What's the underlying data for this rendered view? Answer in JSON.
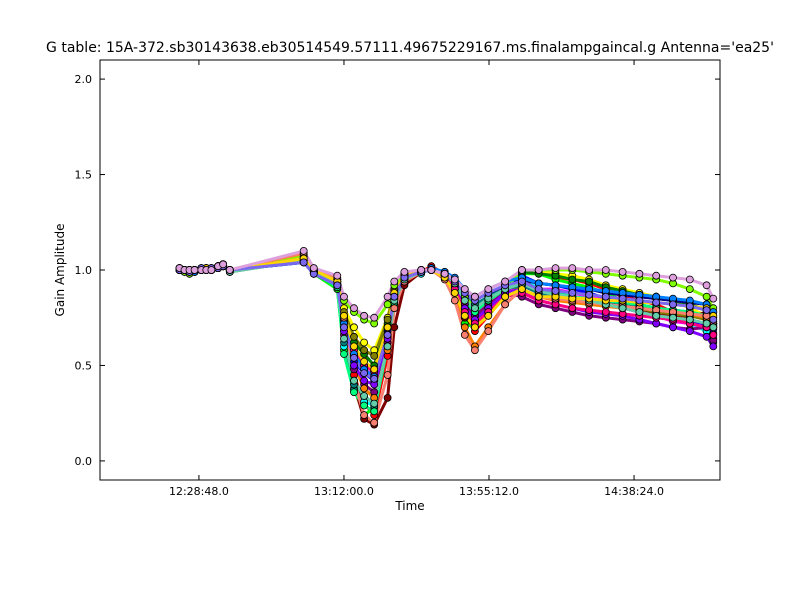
{
  "chart_data": {
    "type": "line",
    "title": "G table: 15A-372.sb30143638.eb30514549.57111.49675229167.ms.finalampgaincal.g      Antenna='ea25'",
    "xlabel": "Time",
    "ylabel": "Gain Amplitude",
    "x_ticks": [
      "12:28:48.0",
      "13:12:00.0",
      "13:55:12.0",
      "14:38:24.0"
    ],
    "y_ticks": [
      "0.0",
      "0.5",
      "1.0",
      "1.5",
      "2.0"
    ],
    "ylim": [
      -0.1,
      2.1
    ],
    "xlim_seconds_from_12_00": [
      -40,
      11040
    ],
    "grid": false,
    "legend": "none",
    "time_points": [
      "12:23:00",
      "12:24:30",
      "12:26:00",
      "12:27:30",
      "12:29:30",
      "12:31:00",
      "12:32:30",
      "12:34:30",
      "12:36:00",
      "12:38:00",
      "13:00:00",
      "13:03:00",
      "13:10:00",
      "13:12:00",
      "13:15:00",
      "13:18:00",
      "13:21:00",
      "13:25:00",
      "13:27:00",
      "13:30:00",
      "13:35:00",
      "13:38:00",
      "13:42:00",
      "13:45:00",
      "13:48:00",
      "13:51:00",
      "13:55:00",
      "14:00:00",
      "14:05:00",
      "14:10:00",
      "14:15:00",
      "14:20:00",
      "14:25:00",
      "14:30:00",
      "14:35:00",
      "14:40:00",
      "14:45:00",
      "14:50:00",
      "14:55:00",
      "15:00:00",
      "15:02:00"
    ],
    "series": [
      {
        "color": "#ff0000",
        "values": [
          1.01,
          1.0,
          0.99,
          1.0,
          1.0,
          1.01,
          1.0,
          1.02,
          1.03,
          1.0,
          1.08,
          1.0,
          0.95,
          0.73,
          0.45,
          0.3,
          0.24,
          0.55,
          0.85,
          0.95,
          0.99,
          1.02,
          0.98,
          0.9,
          0.75,
          0.68,
          0.76,
          0.88,
          0.99,
          1.0,
          0.96,
          0.95,
          0.93,
          0.9,
          0.86,
          0.84,
          0.82,
          0.78,
          0.74,
          0.7,
          0.67
        ]
      },
      {
        "color": "#00ff00",
        "values": [
          1.0,
          0.99,
          0.98,
          0.99,
          1.0,
          1.0,
          1.0,
          1.01,
          1.02,
          0.99,
          1.06,
          0.98,
          0.9,
          0.58,
          0.38,
          0.24,
          0.28,
          0.7,
          0.9,
          0.98,
          1.0,
          1.0,
          0.96,
          0.88,
          0.72,
          0.7,
          0.78,
          0.86,
          0.98,
          0.98,
          0.95,
          0.93,
          0.91,
          0.88,
          0.84,
          0.82,
          0.8,
          0.76,
          0.72,
          0.68,
          0.64
        ]
      },
      {
        "color": "#0000ff",
        "values": [
          1.0,
          1.0,
          0.99,
          1.0,
          1.01,
          1.0,
          1.0,
          1.02,
          1.02,
          1.0,
          1.05,
          0.99,
          0.93,
          0.68,
          0.52,
          0.46,
          0.42,
          0.65,
          0.87,
          0.96,
          0.99,
          1.01,
          0.97,
          0.92,
          0.8,
          0.73,
          0.8,
          0.9,
          0.97,
          0.93,
          0.92,
          0.9,
          0.88,
          0.85,
          0.83,
          0.8,
          0.78,
          0.76,
          0.74,
          0.71,
          0.69
        ]
      },
      {
        "color": "#00ffff",
        "values": [
          1.01,
          1.0,
          1.0,
          0.99,
          1.0,
          1.01,
          1.01,
          1.01,
          1.03,
          1.0,
          1.04,
          0.99,
          0.91,
          0.6,
          0.37,
          0.31,
          0.29,
          0.62,
          0.84,
          0.95,
          0.98,
          1.01,
          0.99,
          0.95,
          0.86,
          0.8,
          0.84,
          0.92,
          0.96,
          0.9,
          0.88,
          0.86,
          0.84,
          0.82,
          0.8,
          0.78,
          0.76,
          0.74,
          0.72,
          0.68,
          0.62
        ]
      },
      {
        "color": "#ff00ff",
        "values": [
          1.0,
          1.0,
          0.99,
          1.0,
          1.0,
          1.0,
          1.01,
          1.02,
          1.02,
          1.0,
          1.07,
          1.0,
          0.94,
          0.72,
          0.55,
          0.48,
          0.45,
          0.7,
          0.88,
          0.97,
          1.0,
          1.0,
          0.97,
          0.92,
          0.84,
          0.78,
          0.82,
          0.88,
          0.93,
          0.9,
          0.9,
          0.88,
          0.86,
          0.84,
          0.8,
          0.78,
          0.76,
          0.73,
          0.72,
          0.7,
          0.66
        ]
      },
      {
        "color": "#ffff00",
        "values": [
          1.0,
          0.99,
          0.99,
          1.0,
          1.0,
          1.01,
          1.0,
          1.01,
          1.02,
          1.0,
          1.06,
          1.0,
          0.95,
          0.8,
          0.7,
          0.62,
          0.58,
          0.75,
          0.9,
          0.98,
          1.0,
          1.0,
          0.96,
          0.9,
          0.82,
          0.76,
          0.8,
          0.88,
          1.0,
          0.99,
          0.98,
          0.97,
          0.95,
          0.92,
          0.9,
          0.88,
          0.86,
          0.84,
          0.8,
          0.76,
          0.72
        ]
      },
      {
        "color": "#800000",
        "values": [
          1.01,
          1.0,
          0.99,
          1.0,
          1.0,
          1.0,
          1.0,
          1.02,
          1.03,
          1.0,
          1.05,
          0.99,
          0.92,
          0.7,
          0.4,
          0.22,
          0.19,
          0.33,
          0.7,
          0.92,
          0.99,
          1.0,
          0.98,
          0.9,
          0.75,
          0.7,
          0.78,
          0.9,
          0.96,
          0.88,
          0.86,
          0.85,
          0.83,
          0.82,
          0.8,
          0.79,
          0.77,
          0.76,
          0.75,
          0.78,
          0.72
        ]
      },
      {
        "color": "#008000",
        "values": [
          1.0,
          1.0,
          1.0,
          0.99,
          1.0,
          1.0,
          1.01,
          1.01,
          1.02,
          0.99,
          1.05,
          0.99,
          0.93,
          0.76,
          0.62,
          0.56,
          0.5,
          0.72,
          0.88,
          0.97,
          0.99,
          1.0,
          0.97,
          0.91,
          0.8,
          0.74,
          0.8,
          0.88,
          0.99,
          0.98,
          0.97,
          0.95,
          0.94,
          0.91,
          0.89,
          0.87,
          0.86,
          0.84,
          0.82,
          0.79,
          0.75
        ]
      },
      {
        "color": "#000080",
        "values": [
          1.0,
          1.0,
          0.99,
          1.0,
          1.01,
          1.0,
          1.0,
          1.02,
          1.02,
          1.0,
          1.04,
          0.98,
          0.92,
          0.7,
          0.56,
          0.5,
          0.47,
          0.68,
          0.86,
          0.96,
          0.99,
          1.0,
          0.98,
          0.93,
          0.85,
          0.8,
          0.86,
          0.92,
          0.95,
          0.93,
          0.92,
          0.91,
          0.9,
          0.88,
          0.87,
          0.86,
          0.85,
          0.84,
          0.83,
          0.82,
          0.78
        ]
      },
      {
        "color": "#808000",
        "values": [
          1.01,
          1.0,
          1.0,
          1.0,
          1.0,
          1.01,
          1.0,
          1.01,
          1.03,
          1.0,
          1.07,
          1.0,
          0.94,
          0.78,
          0.65,
          0.58,
          0.55,
          0.74,
          0.89,
          0.97,
          1.0,
          1.0,
          0.97,
          0.9,
          0.78,
          0.72,
          0.78,
          0.86,
          0.92,
          0.88,
          0.86,
          0.85,
          0.84,
          0.82,
          0.81,
          0.8,
          0.78,
          0.77,
          0.76,
          0.74,
          0.7
        ]
      },
      {
        "color": "#800080",
        "values": [
          1.0,
          1.0,
          0.99,
          1.0,
          1.0,
          1.0,
          1.01,
          1.02,
          1.02,
          1.0,
          1.06,
          0.99,
          0.92,
          0.66,
          0.48,
          0.4,
          0.36,
          0.62,
          0.85,
          0.95,
          0.99,
          1.01,
          0.98,
          0.92,
          0.82,
          0.76,
          0.82,
          0.88,
          0.86,
          0.82,
          0.8,
          0.78,
          0.76,
          0.75,
          0.74,
          0.73,
          0.72,
          0.7,
          0.69,
          0.7,
          0.63
        ]
      },
      {
        "color": "#008080",
        "values": [
          1.0,
          1.0,
          1.0,
          1.0,
          1.0,
          1.01,
          1.0,
          1.01,
          1.02,
          1.0,
          1.04,
          0.99,
          0.91,
          0.62,
          0.4,
          0.34,
          0.3,
          0.6,
          0.84,
          0.96,
          0.99,
          1.0,
          0.98,
          0.94,
          0.86,
          0.82,
          0.86,
          0.9,
          0.92,
          0.88,
          0.86,
          0.85,
          0.84,
          0.83,
          0.82,
          0.81,
          0.8,
          0.79,
          0.78,
          0.76,
          0.7
        ]
      },
      {
        "color": "#ff8000",
        "values": [
          1.01,
          1.0,
          0.99,
          1.0,
          1.0,
          1.0,
          1.0,
          1.02,
          1.03,
          1.0,
          1.08,
          1.0,
          0.95,
          0.74,
          0.5,
          0.38,
          0.33,
          0.58,
          0.82,
          0.94,
          0.99,
          1.0,
          0.96,
          0.88,
          0.7,
          0.6,
          0.7,
          0.82,
          0.9,
          0.86,
          0.84,
          0.83,
          0.82,
          0.81,
          0.8,
          0.8,
          0.79,
          0.78,
          0.77,
          0.75,
          0.71
        ]
      },
      {
        "color": "#80ff00",
        "values": [
          1.0,
          0.99,
          0.98,
          0.99,
          1.0,
          1.0,
          1.0,
          1.01,
          1.02,
          0.99,
          1.07,
          0.99,
          0.95,
          0.84,
          0.78,
          0.74,
          0.72,
          0.82,
          0.92,
          0.98,
          1.0,
          1.0,
          0.97,
          0.93,
          0.86,
          0.8,
          0.84,
          0.9,
          1.0,
          1.0,
          1.0,
          1.0,
          0.99,
          0.98,
          0.97,
          0.96,
          0.95,
          0.93,
          0.9,
          0.86,
          0.8
        ]
      },
      {
        "color": "#8000ff",
        "values": [
          1.0,
          1.0,
          0.99,
          1.0,
          1.01,
          1.0,
          1.0,
          1.02,
          1.02,
          1.0,
          1.05,
          0.99,
          0.92,
          0.68,
          0.5,
          0.42,
          0.4,
          0.64,
          0.86,
          0.96,
          0.99,
          1.0,
          0.97,
          0.91,
          0.8,
          0.74,
          0.8,
          0.88,
          0.9,
          0.84,
          0.82,
          0.8,
          0.78,
          0.77,
          0.76,
          0.74,
          0.72,
          0.7,
          0.68,
          0.65,
          0.6
        ]
      },
      {
        "color": "#ff0080",
        "values": [
          1.01,
          1.0,
          1.0,
          1.0,
          1.0,
          1.01,
          1.0,
          1.01,
          1.03,
          1.0,
          1.06,
          1.0,
          0.94,
          0.74,
          0.58,
          0.5,
          0.47,
          0.7,
          0.87,
          0.97,
          1.0,
          1.0,
          0.97,
          0.9,
          0.78,
          0.72,
          0.78,
          0.86,
          0.88,
          0.84,
          0.82,
          0.8,
          0.79,
          0.78,
          0.77,
          0.76,
          0.75,
          0.74,
          0.72,
          0.7,
          0.66
        ]
      },
      {
        "color": "#00ff80",
        "values": [
          1.0,
          1.0,
          0.99,
          1.0,
          1.0,
          1.0,
          1.01,
          1.02,
          1.02,
          1.0,
          1.05,
          0.99,
          0.91,
          0.56,
          0.36,
          0.29,
          0.26,
          0.6,
          0.83,
          0.95,
          0.99,
          1.0,
          0.98,
          0.93,
          0.84,
          0.78,
          0.84,
          0.9,
          0.94,
          0.9,
          0.88,
          0.86,
          0.85,
          0.84,
          0.83,
          0.82,
          0.8,
          0.79,
          0.78,
          0.76,
          0.72
        ]
      },
      {
        "color": "#0080ff",
        "values": [
          1.0,
          1.0,
          1.0,
          0.99,
          1.0,
          1.0,
          1.0,
          1.01,
          1.02,
          1.0,
          1.04,
          0.98,
          0.92,
          0.72,
          0.56,
          0.48,
          0.44,
          0.66,
          0.86,
          0.96,
          0.99,
          1.01,
          0.99,
          0.96,
          0.9,
          0.86,
          0.9,
          0.94,
          0.96,
          0.93,
          0.92,
          0.91,
          0.9,
          0.89,
          0.88,
          0.87,
          0.86,
          0.85,
          0.84,
          0.82,
          0.78
        ]
      },
      {
        "color": "#fa8072",
        "values": [
          1.01,
          1.0,
          0.99,
          1.0,
          1.0,
          1.01,
          1.0,
          1.02,
          1.03,
          1.0,
          1.09,
          1.01,
          0.96,
          0.75,
          0.42,
          0.24,
          0.2,
          0.45,
          0.8,
          0.94,
          0.99,
          1.0,
          0.95,
          0.84,
          0.66,
          0.58,
          0.68,
          0.82,
          0.9,
          0.86,
          0.85,
          0.84,
          0.83,
          0.82,
          0.81,
          0.8,
          0.79,
          0.78,
          0.77,
          0.76,
          0.73
        ]
      },
      {
        "color": "#66cdaa",
        "values": [
          1.0,
          1.0,
          0.99,
          1.0,
          1.0,
          1.0,
          1.0,
          1.01,
          1.02,
          0.99,
          1.05,
          0.99,
          0.92,
          0.64,
          0.42,
          0.34,
          0.3,
          0.6,
          0.84,
          0.95,
          0.99,
          1.0,
          0.98,
          0.93,
          0.84,
          0.8,
          0.85,
          0.9,
          0.93,
          0.89,
          0.87,
          0.86,
          0.84,
          0.82,
          0.8,
          0.78,
          0.76,
          0.75,
          0.74,
          0.72,
          0.7
        ]
      },
      {
        "color": "#ffd700",
        "values": [
          1.0,
          1.0,
          1.0,
          1.0,
          1.0,
          1.01,
          1.0,
          1.02,
          1.02,
          1.0,
          1.06,
          1.0,
          0.94,
          0.76,
          0.6,
          0.52,
          0.48,
          0.7,
          0.88,
          0.97,
          1.0,
          1.0,
          0.96,
          0.88,
          0.76,
          0.7,
          0.76,
          0.86,
          0.9,
          0.86,
          0.86,
          0.85,
          0.85,
          0.84,
          0.84,
          0.83,
          0.83,
          0.82,
          0.81,
          0.8,
          0.76
        ]
      },
      {
        "color": "#7b68ee",
        "values": [
          1.0,
          1.0,
          0.99,
          1.0,
          1.01,
          1.0,
          1.01,
          1.01,
          1.02,
          1.0,
          1.04,
          0.98,
          0.92,
          0.7,
          0.54,
          0.46,
          0.43,
          0.66,
          0.86,
          0.96,
          0.99,
          1.0,
          0.98,
          0.94,
          0.88,
          0.84,
          0.88,
          0.92,
          0.94,
          0.9,
          0.89,
          0.88,
          0.87,
          0.86,
          0.85,
          0.84,
          0.83,
          0.82,
          0.81,
          0.79,
          0.74
        ]
      },
      {
        "color": "#dda0dd",
        "values": [
          1.01,
          1.0,
          1.0,
          1.0,
          1.0,
          1.0,
          1.0,
          1.02,
          1.03,
          1.0,
          1.1,
          1.01,
          0.97,
          0.86,
          0.8,
          0.76,
          0.75,
          0.86,
          0.94,
          0.99,
          1.0,
          1.0,
          0.98,
          0.95,
          0.9,
          0.86,
          0.9,
          0.94,
          1.0,
          1.0,
          1.01,
          1.01,
          1.0,
          1.0,
          0.99,
          0.98,
          0.97,
          0.96,
          0.95,
          0.92,
          0.85
        ]
      }
    ],
    "notes_on_extent": "Gains near 1.0 from 12:23 to 12:38, a deep dip around 13:20 (min ~0.19), recovery to ~1.0 by 13:38, a shallower dip around 13:51 (~0.58-0.8), then values spread 0.6-1.03 until ~15:02."
  }
}
